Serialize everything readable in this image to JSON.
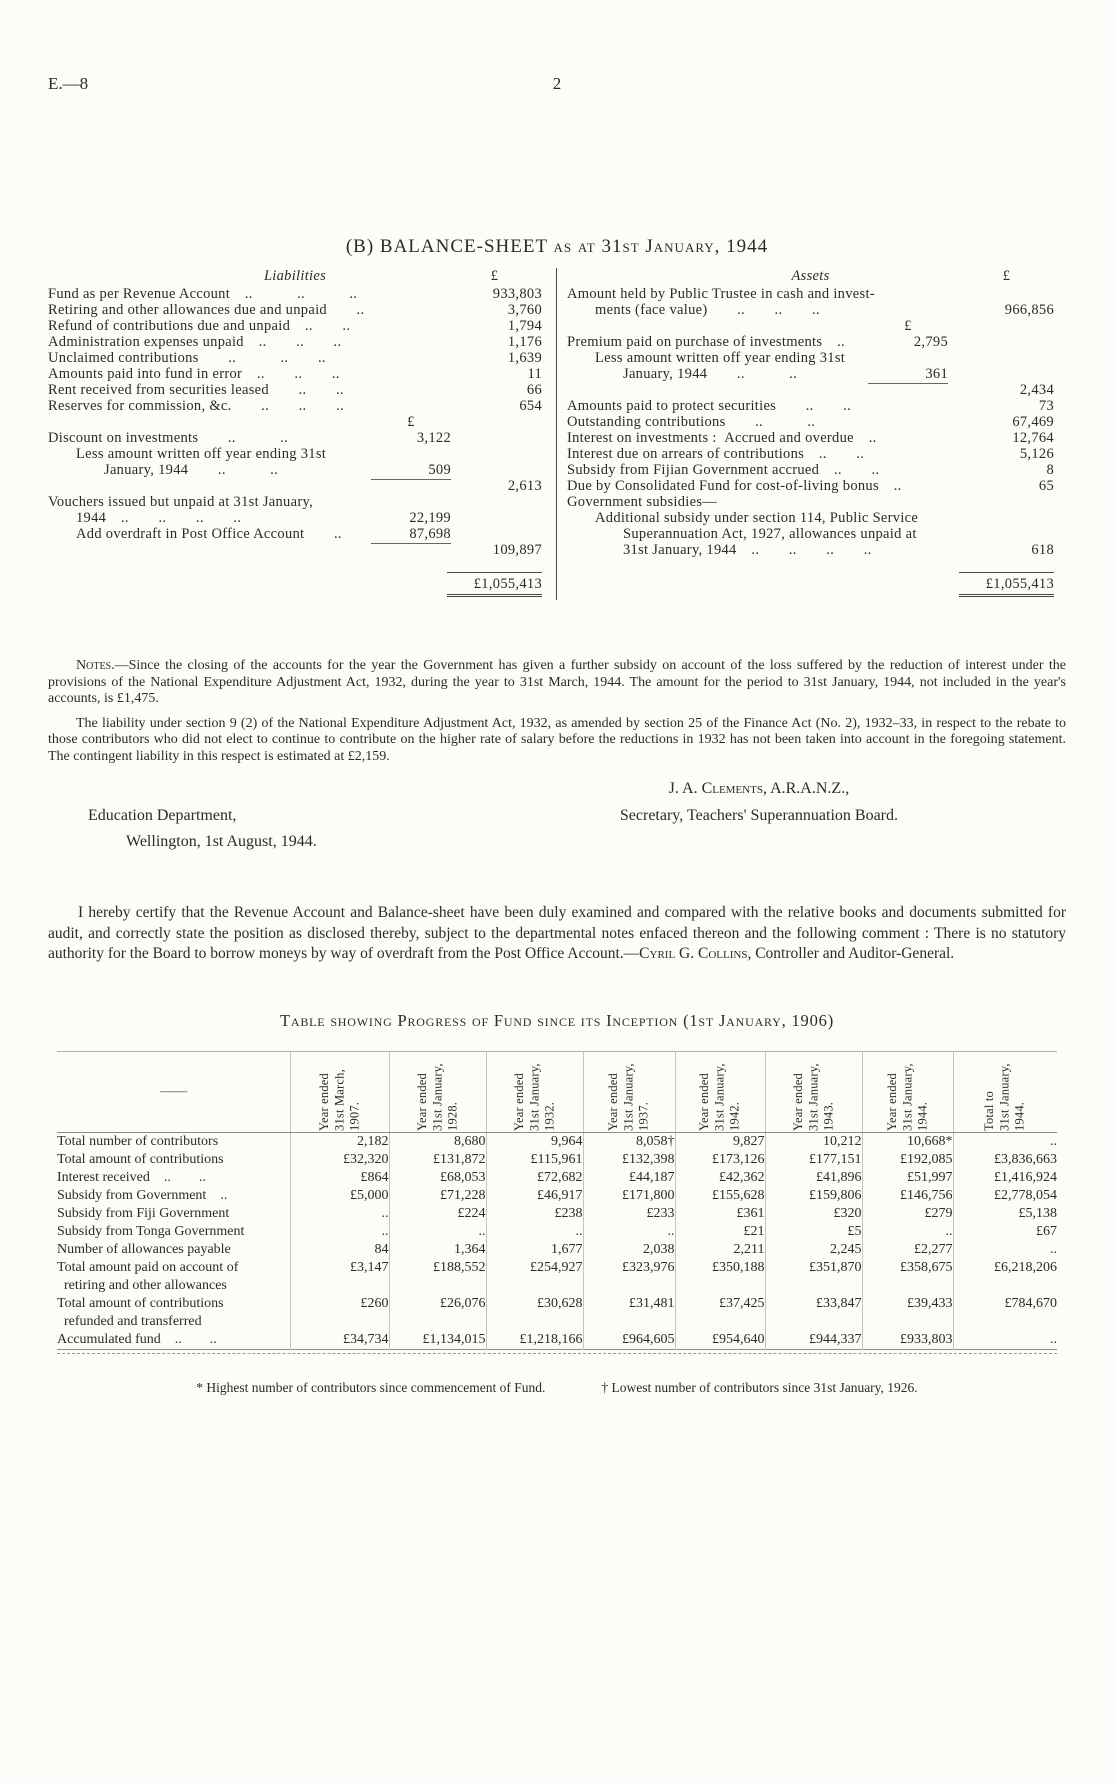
{
  "page": {
    "doc_ref": "E.—8",
    "page_number": "2"
  },
  "balance_sheet": {
    "title_main": "(B) BALANCE-SHEET",
    "title_sub": "as at 31st January, 1944",
    "liabilities": {
      "heading": "Liabilities",
      "col_symbol": "£",
      "rows": [
        {
          "label": "Fund as per Revenue Account ..   ..   ..",
          "outer": "933,803"
        },
        {
          "label": "Retiring and other allowances due and unpaid  ..",
          "outer": "3,760"
        },
        {
          "label": "Refund of contributions due and unpaid ..  ..",
          "outer": "1,794"
        },
        {
          "label": "Administration expenses unpaid ..  ..  ..",
          "outer": "1,176"
        },
        {
          "label": "Unclaimed contributions  ..   ..  ..",
          "outer": "1,639"
        },
        {
          "label": "Amounts paid into fund in error ..  ..  ..",
          "outer": "11"
        },
        {
          "label": "Rent received from securities leased  ..  ..",
          "outer": "66"
        },
        {
          "label": "Reserves for commission, &c.  ..  ..  ..",
          "outer": "654"
        },
        {
          "inner": "£",
          "cls": "colhead"
        },
        {
          "label": "Discount on investments  ..   ..",
          "inner": "3,122"
        },
        {
          "label": "Less amount written off year ending 31st",
          "indent": 1
        },
        {
          "label": "January, 1944  ..   ..",
          "indent": 2,
          "inner": "509",
          "rule": "inner"
        },
        {
          "outer": "2,613"
        },
        {
          "label": "Vouchers issued but unpaid at 31st January,"
        },
        {
          "label": "1944 ..  ..  ..  ..",
          "indent": 1,
          "inner": "22,199"
        },
        {
          "label": "Add overdraft in Post Office Account  ..",
          "indent": 1,
          "inner": "87,698",
          "rule": "inner"
        },
        {
          "outer": "109,897"
        },
        {
          "outer": "£1,055,413",
          "cls": "total"
        }
      ]
    },
    "assets": {
      "heading": "Assets",
      "col_symbol": "£",
      "rows": [
        {
          "label": "Amount held by Public Trustee in cash and invest-"
        },
        {
          "label": "ments (face value)  ..  ..  ..",
          "indent": 1,
          "outer": "966,856"
        },
        {
          "inner": "£",
          "cls": "colhead"
        },
        {
          "label": "Premium paid on purchase of investments ..",
          "inner": "2,795"
        },
        {
          "label": "Less amount written off year ending 31st",
          "indent": 1
        },
        {
          "label": "January, 1944  ..   ..",
          "indent": 2,
          "inner": "361",
          "rule": "inner"
        },
        {
          "outer": "2,434"
        },
        {
          "label": "Amounts paid to protect securities  ..  ..",
          "outer": "73"
        },
        {
          "label": "Outstanding contributions  ..   ..",
          "outer": "67,469"
        },
        {
          "label": "Interest on investments : Accrued and overdue ..",
          "outer": "12,764"
        },
        {
          "label": "Interest due on arrears of contributions ..  ..",
          "outer": "5,126"
        },
        {
          "label": "Subsidy from Fijian Government accrued ..  ..",
          "outer": "8"
        },
        {
          "label": "Due by Consolidated Fund for cost-of-living bonus ..",
          "outer": "65"
        },
        {
          "label": "Government subsidies—"
        },
        {
          "label": "Additional subsidy under section 114, Public Service",
          "indent": 1
        },
        {
          "label": "Superannuation Act, 1927, allowances unpaid at",
          "indent": 2
        },
        {
          "label": "31st January, 1944 ..  ..  ..  ..",
          "indent": 2,
          "outer": "618"
        },
        {
          "outer": "£1,055,413",
          "cls": "total"
        }
      ]
    }
  },
  "notes": {
    "label": "Notes.—",
    "p1": "Since the closing of the accounts for the year the Government has given a further subsidy on account of the loss suffered by the reduction of interest under the provisions of the National Expenditure Adjustment Act, 1932, during the year to 31st March, 1944.  The amount for the period to 31st January, 1944, not included in the year's accounts, is £1,475.",
    "p2": "The liability under section 9 (2) of the National Expenditure Adjustment Act, 1932, as amended by section 25 of the Finance Act (No. 2), 1932–33, in respect to the rebate to those contributors who did not elect to continue to contribute on the higher rate of salary before the reductions in 1932 has not been taken into account in the foregoing statement.  The contingent liability in this respect is estimated at £2,159."
  },
  "signature": {
    "name": "J. A. Clements, A.R.A.N.Z.,",
    "role": "Secretary, Teachers' Superannuation Board.",
    "department": "Education Department,",
    "place_date": "Wellington, 1st August, 1944."
  },
  "certification": {
    "body": "I hereby certify that the Revenue Account and Balance-sheet have been duly examined and compared with the relative books and documents submitted for audit, and correctly state the position as disclosed thereby, subject to the departmental notes enfaced thereon and the following comment :  There is no statutory authority for the Board to borrow moneys by way of overdraft from the Post Office Account.—",
    "auditor_name": "Cyril G. Collins",
    "auditor_title": ", Controller and Auditor-General."
  },
  "progress_table": {
    "title": "Table showing Progress of Fund since its Inception (1st January, 1906)",
    "corner": "——",
    "columns": [
      "Year ended\n31st March,\n1907.",
      "Year ended\n31st January,\n1928.",
      "Year ended\n31st January,\n1932.",
      "Year ended\n31st January,\n1937.",
      "Year ended\n31st January,\n1942.",
      "Year ended\n31st January,\n1943.",
      "Year ended\n31st January,\n1944.",
      "Total to\n31st January,\n1944."
    ],
    "rows": [
      {
        "label": "Total number of contributors",
        "values": [
          "2,182",
          "8,680",
          "9,964",
          "8,058†",
          "9,827",
          "10,212",
          "10,668*",
          ".."
        ]
      },
      {
        "label": "Total amount of contributions",
        "values": [
          "£32,320",
          "£131,872",
          "£115,961",
          "£132,398",
          "£173,126",
          "£177,151",
          "£192,085",
          "£3,836,663"
        ]
      },
      {
        "label": "Interest received ..  ..",
        "values": [
          "£864",
          "£68,053",
          "£72,682",
          "£44,187",
          "£42,362",
          "£41,896",
          "£51,997",
          "£1,416,924"
        ]
      },
      {
        "label": "Subsidy from Government ..",
        "values": [
          "£5,000",
          "£71,228",
          "£46,917",
          "£171,800",
          "£155,628",
          "£159,806",
          "£146,756",
          "£2,778,054"
        ]
      },
      {
        "label": "Subsidy from Fiji Government",
        "values": [
          "..",
          "£224",
          "£238",
          "£233",
          "£361",
          "£320",
          "£279",
          "£5,138"
        ]
      },
      {
        "label": "Subsidy from Tonga Government",
        "values": [
          "..",
          "..",
          "..",
          "..",
          "£21",
          "£5",
          "..",
          "£67"
        ]
      },
      {
        "label": "Number of allowances payable",
        "values": [
          "84",
          "1,364",
          "1,677",
          "2,038",
          "2,211",
          "2,245",
          "£2,277",
          ".."
        ]
      },
      {
        "label": "Total amount paid on account of\n retiring and other allowances",
        "values": [
          "£3,147",
          "£188,552",
          "£254,927",
          "£323,976",
          "£350,188",
          "£351,870",
          "£358,675",
          "£6,218,206"
        ]
      },
      {
        "label": "Total amount of contributions\n refunded and transferred",
        "values": [
          "£260",
          "£26,076",
          "£30,628",
          "£31,481",
          "£37,425",
          "£33,847",
          "£39,433",
          "£784,670"
        ]
      },
      {
        "label": "Accumulated fund ..  ..",
        "values": [
          "£34,734",
          "£1,134,015",
          "£1,218,166",
          "£964,605",
          "£954,640",
          "£944,337",
          "£933,803",
          ".."
        ]
      }
    ],
    "footnotes": [
      "* Highest number of contributors since commencement of Fund.",
      "† Lowest number of contributors since 31st January, 1926."
    ]
  }
}
